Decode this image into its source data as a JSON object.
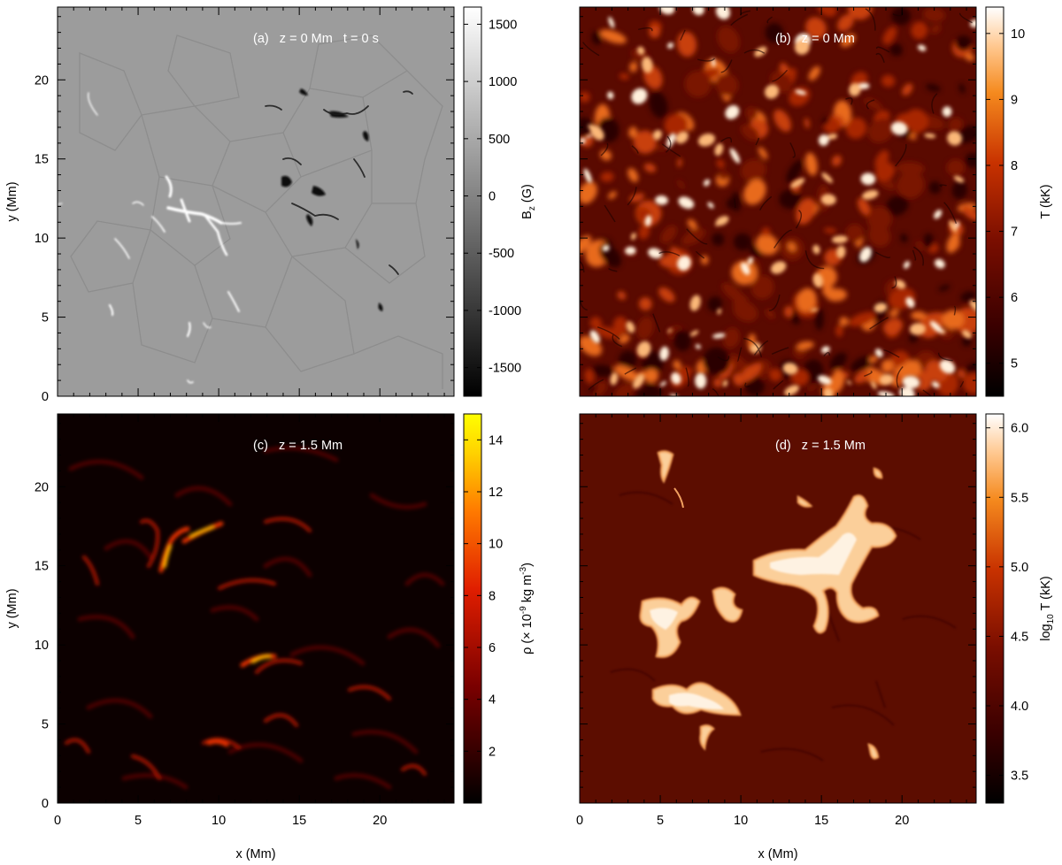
{
  "figure": {
    "x_axis_label": "x (Mm)",
    "y_axis_label": "y (Mm)"
  },
  "chart_data": [
    {
      "type": "heatmap",
      "panel_label": "(a)   z = 0 Mm   t = 0 s",
      "xlabel": "",
      "ylabel": "y (Mm)",
      "xlim": [
        0,
        24.6
      ],
      "ylim": [
        0,
        24.6
      ],
      "x_ticks": [
        0,
        5,
        10,
        15,
        20
      ],
      "y_ticks": [
        0,
        5,
        10,
        15,
        20
      ],
      "x_tick_labels_shown": false,
      "y_tick_labels_shown": true,
      "colormap": "gray",
      "colorbar": {
        "label": "B_z (G)",
        "label_main": "B",
        "label_sub": "z",
        "label_tail": " (G)",
        "range": [
          -1750,
          1650
        ],
        "ticks": [
          -1500,
          -1000,
          -500,
          0,
          500,
          1000,
          1500
        ],
        "tick_labels": [
          "-1500",
          "-1000",
          "-500",
          "0",
          "500",
          "1000",
          "1500"
        ]
      }
    },
    {
      "type": "heatmap",
      "panel_label": "(b)   z = 0 Mm",
      "xlabel": "",
      "ylabel": "",
      "xlim": [
        0,
        24.6
      ],
      "ylim": [
        0,
        24.6
      ],
      "x_ticks": [
        0,
        5,
        10,
        15,
        20
      ],
      "y_ticks": [
        0,
        5,
        10,
        15,
        20
      ],
      "x_tick_labels_shown": false,
      "y_tick_labels_shown": false,
      "colormap": "heat",
      "colorbar": {
        "label": "T (kK)",
        "label_main": "T (kK)",
        "label_sub": "",
        "label_tail": "",
        "range": [
          4.5,
          10.4
        ],
        "ticks": [
          5,
          6,
          7,
          8,
          9,
          10
        ],
        "tick_labels": [
          "5",
          "6",
          "7",
          "8",
          "9",
          "10"
        ]
      }
    },
    {
      "type": "heatmap",
      "panel_label": "(c)   z = 1.5 Mm",
      "xlabel": "x (Mm)",
      "ylabel": "y (Mm)",
      "xlim": [
        0,
        24.6
      ],
      "ylim": [
        0,
        24.6
      ],
      "x_ticks": [
        0,
        5,
        10,
        15,
        20
      ],
      "y_ticks": [
        0,
        5,
        10,
        15,
        20
      ],
      "x_tick_labels_shown": true,
      "y_tick_labels_shown": true,
      "colormap": "hot",
      "colorbar": {
        "label": "ρ (× 10^-9 kg m^-3)",
        "label_main": "ρ (× 10",
        "label_sup": "-9",
        "label_mid": " kg m",
        "label_sup2": "-3",
        "label_tail": ")",
        "range": [
          0,
          15
        ],
        "ticks": [
          2,
          4,
          6,
          8,
          10,
          12,
          14
        ],
        "tick_labels": [
          "2",
          "4",
          "6",
          "8",
          "10",
          "12",
          "14"
        ]
      }
    },
    {
      "type": "heatmap",
      "panel_label": "(d)   z = 1.5 Mm",
      "xlabel": "x (Mm)",
      "ylabel": "",
      "xlim": [
        0,
        24.6
      ],
      "ylim": [
        0,
        24.6
      ],
      "x_ticks": [
        0,
        5,
        10,
        15,
        20
      ],
      "y_ticks": [
        0,
        5,
        10,
        15,
        20
      ],
      "x_tick_labels_shown": true,
      "y_tick_labels_shown": false,
      "colormap": "heat",
      "colorbar": {
        "label": "log_10 T (kK)",
        "label_main": "log",
        "label_sub": "10",
        "label_tail": " T (kK)",
        "range": [
          3.3,
          6.1
        ],
        "ticks": [
          3.5,
          4.0,
          4.5,
          5.0,
          5.5,
          6.0
        ],
        "tick_labels": [
          "3.5",
          "4.0",
          "4.5",
          "5.0",
          "5.5",
          "6.0"
        ]
      }
    }
  ]
}
